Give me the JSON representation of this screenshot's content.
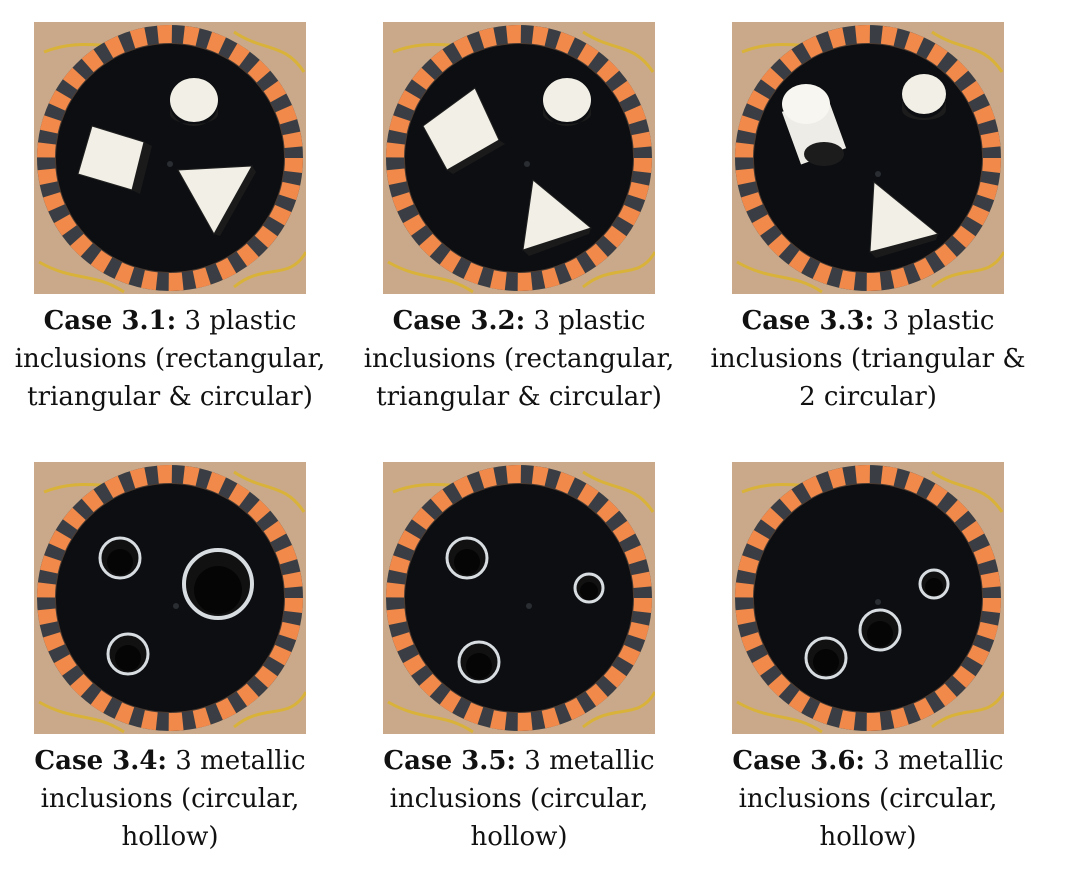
{
  "figure": {
    "panels": [
      {
        "id": "3.1",
        "label": "Case 3.1:",
        "lines": [
          "3 plastic",
          "inclusions (rectangular,",
          "triangular & circular)"
        ],
        "material": "plastic",
        "inclusions": [
          "rectangular",
          "triangular",
          "circular"
        ]
      },
      {
        "id": "3.2",
        "label": "Case 3.2:",
        "lines": [
          "3 plastic",
          "inclusions (rectangular,",
          "triangular & circular)"
        ],
        "material": "plastic",
        "inclusions": [
          "rectangular",
          "triangular",
          "circular"
        ]
      },
      {
        "id": "3.3",
        "label": "Case 3.3:",
        "lines": [
          "3 plastic",
          "inclusions (triangular &",
          "2 circular)"
        ],
        "material": "plastic",
        "inclusions": [
          "circular-tall",
          "circular",
          "triangular"
        ]
      },
      {
        "id": "3.4",
        "label": "Case 3.4:",
        "lines": [
          "3 metallic",
          "inclusions (circular,",
          "hollow)"
        ],
        "material": "metal",
        "inclusions": [
          "ring",
          "ring-large",
          "ring"
        ]
      },
      {
        "id": "3.5",
        "label": "Case 3.5:",
        "lines": [
          "3 metallic",
          "inclusions (circular,",
          "hollow)"
        ],
        "material": "metal",
        "inclusions": [
          "ring",
          "ring-small",
          "ring"
        ]
      },
      {
        "id": "3.6",
        "label": "Case 3.6:",
        "lines": [
          "3 metallic",
          "inclusions (circular,",
          "hollow)"
        ],
        "material": "metal",
        "inclusions": [
          "ring-small",
          "ring",
          "ring"
        ]
      }
    ],
    "colors": {
      "tank": "#0c0e11",
      "electrode": "#f0894a",
      "gap": "#3a3e44",
      "background": "#c9a98a",
      "plastic": "#f1efe6",
      "metal": "#d8dde2"
    }
  }
}
